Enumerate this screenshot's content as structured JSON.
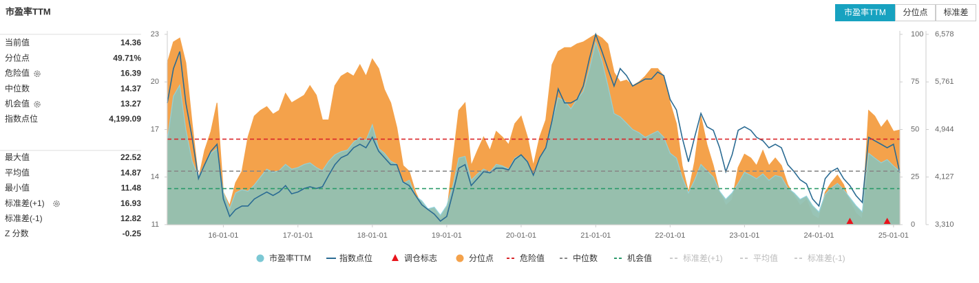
{
  "panel": {
    "title": "市盈率TTM",
    "groups": [
      [
        {
          "label": "当前值",
          "value": 14.36
        },
        {
          "label": "分位点",
          "value": 49.71,
          "value_label": "49.71%"
        },
        {
          "label": "危险值",
          "value": 16.39,
          "settings": true
        },
        {
          "label": "中位数",
          "value": 14.37
        },
        {
          "label": "机会值",
          "value": 13.27,
          "settings": true
        },
        {
          "label": "指数点位",
          "value": 4199.09,
          "value_label": "4,199.09"
        }
      ],
      [
        {
          "label": "最大值",
          "value": 22.52
        },
        {
          "label": "平均值",
          "value": 14.87
        },
        {
          "label": "最小值",
          "value": 11.48
        },
        {
          "label": "标准差(+1)",
          "value": 16.93,
          "settings": true
        },
        {
          "label": "标准差(-1)",
          "value": 12.82
        },
        {
          "label": "Z 分数",
          "value": -0.25
        }
      ]
    ]
  },
  "tabs": {
    "items": [
      "市盈率TTM",
      "分位点",
      "标准差"
    ],
    "active": 0
  },
  "chart_data": {
    "type": "line",
    "x": [
      "2015-04-01",
      "2015-05-01",
      "2015-06-01",
      "2015-07-01",
      "2015-08-01",
      "2015-09-01",
      "2015-10-01",
      "2015-11-01",
      "2015-12-01",
      "2016-01-01",
      "2016-02-01",
      "2016-03-01",
      "2016-04-01",
      "2016-05-01",
      "2016-06-01",
      "2016-07-01",
      "2016-08-01",
      "2016-09-01",
      "2016-10-01",
      "2016-11-01",
      "2016-12-01",
      "2017-01-01",
      "2017-02-01",
      "2017-03-01",
      "2017-04-01",
      "2017-05-01",
      "2017-06-01",
      "2017-07-01",
      "2017-08-01",
      "2017-09-01",
      "2017-10-01",
      "2017-11-01",
      "2017-12-01",
      "2018-01-01",
      "2018-02-01",
      "2018-03-01",
      "2018-04-01",
      "2018-05-01",
      "2018-06-01",
      "2018-07-01",
      "2018-08-01",
      "2018-09-01",
      "2018-10-01",
      "2018-11-01",
      "2018-12-01",
      "2019-01-01",
      "2019-02-01",
      "2019-03-01",
      "2019-04-01",
      "2019-05-01",
      "2019-06-01",
      "2019-07-01",
      "2019-08-01",
      "2019-09-01",
      "2019-10-01",
      "2019-11-01",
      "2019-12-01",
      "2020-01-01",
      "2020-02-01",
      "2020-03-01",
      "2020-04-01",
      "2020-05-01",
      "2020-06-01",
      "2020-07-01",
      "2020-08-01",
      "2020-09-01",
      "2020-10-01",
      "2020-11-01",
      "2020-12-01",
      "2021-01-01",
      "2021-02-01",
      "2021-03-01",
      "2021-04-01",
      "2021-05-01",
      "2021-06-01",
      "2021-07-01",
      "2021-08-01",
      "2021-09-01",
      "2021-10-01",
      "2021-11-01",
      "2021-12-01",
      "2022-01-01",
      "2022-02-01",
      "2022-03-01",
      "2022-04-01",
      "2022-05-01",
      "2022-06-01",
      "2022-07-01",
      "2022-08-01",
      "2022-09-01",
      "2022-10-01",
      "2022-11-01",
      "2022-12-01",
      "2023-01-01",
      "2023-02-01",
      "2023-03-01",
      "2023-04-01",
      "2023-05-01",
      "2023-06-01",
      "2023-07-01",
      "2023-08-01",
      "2023-09-01",
      "2023-10-01",
      "2023-11-01",
      "2023-12-01",
      "2024-01-01",
      "2024-02-01",
      "2024-03-01",
      "2024-04-01",
      "2024-05-01",
      "2024-06-01",
      "2024-07-01",
      "2024-08-01",
      "2024-09-01",
      "2024-10-01",
      "2024-11-01",
      "2024-12-01",
      "2025-01-01",
      "2025-02-01"
    ],
    "xlim": [
      "2015-04-01",
      "2025-02-01"
    ],
    "xticks": [
      {
        "value": "2016-01-01",
        "label": "16-01-01"
      },
      {
        "value": "2017-01-01",
        "label": "17-01-01"
      },
      {
        "value": "2018-01-01",
        "label": "18-01-01"
      },
      {
        "value": "2019-01-01",
        "label": "19-01-01"
      },
      {
        "value": "2020-01-01",
        "label": "20-01-01"
      },
      {
        "value": "2021-01-01",
        "label": "21-01-01"
      },
      {
        "value": "2022-01-01",
        "label": "22-01-01"
      },
      {
        "value": "2023-01-01",
        "label": "23-01-01"
      },
      {
        "value": "2024-01-01",
        "label": "24-01-01"
      },
      {
        "value": "2025-01-01",
        "label": "25-01-01"
      }
    ],
    "ylim": [
      11,
      23
    ],
    "yticks": [
      11,
      14,
      17,
      20,
      23
    ],
    "y2lim": [
      0,
      100
    ],
    "y2ticks": [
      0,
      25,
      50,
      75,
      100
    ],
    "y3lim": [
      3310,
      6578
    ],
    "y3ticks": [
      {
        "value": 3310,
        "label": "3,310"
      },
      {
        "value": 4127,
        "label": "4,127"
      },
      {
        "value": 4944,
        "label": "4,944"
      },
      {
        "value": 5761,
        "label": "5,761"
      },
      {
        "value": 6578,
        "label": "6,578"
      }
    ],
    "series": [
      {
        "name": "市盈率TTM",
        "color": "#93c1b3",
        "edge": "#8fd3df",
        "style": "area",
        "axis": "y",
        "values": [
          16.3,
          19.1,
          19.8,
          17,
          15,
          14,
          14.8,
          15.5,
          15.8,
          13,
          12,
          13,
          13.2,
          13.1,
          13.5,
          14,
          14.5,
          14.3,
          14.4,
          14.8,
          14.5,
          14.6,
          14.8,
          14.9,
          14.6,
          14.4,
          15,
          15.4,
          15.6,
          15.7,
          16.2,
          16.5,
          16.3,
          17.3,
          15.8,
          15.5,
          15,
          14.8,
          13.6,
          13.8,
          12.8,
          12.5,
          12,
          12.1,
          11.6,
          12.2,
          13.5,
          15.2,
          15.3,
          13.8,
          14.2,
          14.5,
          14.3,
          14.8,
          14.7,
          14.5,
          15.2,
          15.4,
          15,
          14.1,
          15.2,
          15.8,
          17.5,
          19,
          18.8,
          18.3,
          18.9,
          19.4,
          20.8,
          22.5,
          21.3,
          19.8,
          18,
          17.8,
          17.4,
          17,
          16.8,
          16.5,
          16.7,
          16.9,
          16.5,
          15.5,
          15.2,
          14,
          13,
          13.8,
          14.8,
          14.4,
          14,
          13.1,
          12.6,
          13,
          13.6,
          14.3,
          14.1,
          13.9,
          14.2,
          13.8,
          14.1,
          14,
          13.3,
          13,
          12.6,
          12.8,
          12.2,
          11.8,
          12.9,
          13.3,
          13.6,
          13.2,
          12.7,
          12.2,
          11.8,
          15.5,
          15.2,
          14.9,
          15.1,
          14.7,
          14.36
        ]
      },
      {
        "name": "指数点位",
        "color": "#2a6b93",
        "style": "line",
        "axis": "y3",
        "values": [
          5398,
          5988,
          6283,
          5400,
          4800,
          4100,
          4340,
          4570,
          4690,
          3750,
          3450,
          3570,
          3630,
          3630,
          3750,
          3810,
          3870,
          3810,
          3870,
          3980,
          3840,
          3870,
          3930,
          3960,
          3930,
          3960,
          4160,
          4340,
          4460,
          4510,
          4630,
          4690,
          4630,
          4810,
          4570,
          4460,
          4340,
          4340,
          4040,
          3980,
          3810,
          3650,
          3570,
          3490,
          3370,
          3450,
          3870,
          4280,
          4340,
          3980,
          4100,
          4220,
          4200,
          4280,
          4280,
          4250,
          4430,
          4510,
          4390,
          4160,
          4460,
          4630,
          5100,
          5640,
          5400,
          5400,
          5460,
          5690,
          6160,
          6578,
          6280,
          5990,
          5690,
          5990,
          5870,
          5690,
          5750,
          5810,
          5810,
          5930,
          5870,
          5460,
          5280,
          4810,
          4390,
          4810,
          5220,
          4990,
          4930,
          4630,
          4220,
          4510,
          4930,
          4990,
          4930,
          4810,
          4750,
          4630,
          4690,
          4630,
          4340,
          4220,
          4080,
          4010,
          3750,
          3630,
          4100,
          4220,
          4280,
          4100,
          3980,
          3810,
          3690,
          4810,
          4750,
          4690,
          4630,
          4690,
          4199.09
        ]
      },
      {
        "name": "分位点",
        "color": "#f4a24b",
        "style": "area",
        "axis": "y2",
        "values": [
          85,
          96,
          98,
          85,
          53,
          24,
          39,
          49,
          64,
          17,
          10,
          22,
          28,
          46,
          57,
          60,
          62,
          58,
          60,
          69,
          64,
          66,
          68,
          73,
          68,
          55,
          55,
          73,
          78,
          80,
          78,
          84,
          78,
          87,
          82,
          71,
          64,
          51,
          31,
          28,
          17,
          10,
          8,
          6,
          3,
          6,
          35,
          60,
          64,
          31,
          39,
          46,
          39,
          49,
          46,
          42,
          53,
          57,
          46,
          31,
          46,
          55,
          84,
          91,
          93,
          93,
          95,
          96,
          98,
          100,
          98,
          95,
          80,
          75,
          76,
          73,
          75,
          78,
          82,
          82,
          78,
          64,
          53,
          31,
          17,
          33,
          57,
          42,
          31,
          17,
          10,
          13,
          30,
          37,
          35,
          31,
          39,
          31,
          35,
          31,
          21,
          15,
          10,
          13,
          5,
          3,
          17,
          22,
          26,
          21,
          12,
          6,
          3,
          60,
          57,
          51,
          55,
          49,
          49.71
        ]
      }
    ],
    "markers": {
      "name": "调仓标志",
      "color": "#e8141c",
      "x": [
        "2024-06-01",
        "2024-12-01"
      ]
    },
    "reference_lines": [
      {
        "name": "危险值",
        "value": 16.39,
        "color": "#d9262a",
        "visible": true
      },
      {
        "name": "中位数",
        "value": 14.37,
        "color": "#888888",
        "visible": true
      },
      {
        "name": "机会值",
        "value": 13.27,
        "color": "#2a9a6a",
        "visible": true
      },
      {
        "name": "标准差(+1)",
        "value": 16.93,
        "color": "#cccccc",
        "visible": false
      },
      {
        "name": "平均值",
        "value": 14.87,
        "color": "#cccccc",
        "visible": false
      },
      {
        "name": "标准差(-1)",
        "value": 12.82,
        "color": "#cccccc",
        "visible": false
      }
    ]
  }
}
